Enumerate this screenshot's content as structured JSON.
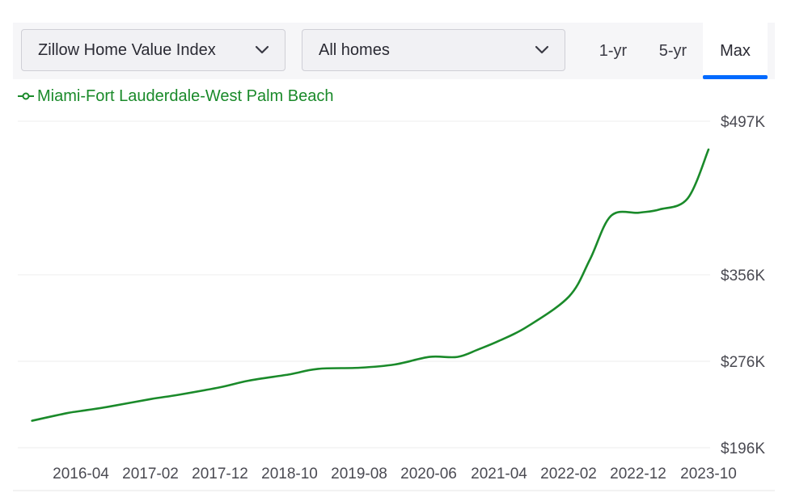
{
  "controls": {
    "metric_dropdown": "Zillow Home Value Index",
    "home_type_dropdown": "All homes",
    "range_tabs": [
      "1-yr",
      "5-yr",
      "Max"
    ],
    "selected_range": "Max"
  },
  "icons": {
    "dropdown": "chevron-down-icon",
    "legend": "line-marker-icon"
  },
  "colors": {
    "series": "#1a8a2a",
    "accent": "#006aff",
    "grid": "#ececec"
  },
  "chart_data": {
    "type": "line",
    "legend_position": "top-left",
    "grid": true,
    "y_axis_position": "right",
    "yticks": [
      {
        "value": 497,
        "label": "$497K"
      },
      {
        "value": 356,
        "label": "$356K"
      },
      {
        "value": 276,
        "label": "$276K"
      },
      {
        "value": 196,
        "label": "$196K"
      }
    ],
    "xticks": [
      "2016-04",
      "2017-02",
      "2017-12",
      "2018-10",
      "2019-08",
      "2020-06",
      "2021-04",
      "2022-02",
      "2022-12",
      "2023-10"
    ],
    "series": [
      {
        "name": "Miami-Fort Lauderdale-West Palm Beach",
        "unit": "thousand USD",
        "points": [
          [
            "2015-09",
            221
          ],
          [
            "2016-02",
            228
          ],
          [
            "2016-04",
            230
          ],
          [
            "2016-08",
            234
          ],
          [
            "2017-02",
            241
          ],
          [
            "2017-06",
            245
          ],
          [
            "2017-12",
            252
          ],
          [
            "2018-04",
            258
          ],
          [
            "2018-10",
            264
          ],
          [
            "2019-02",
            269
          ],
          [
            "2019-08",
            270
          ],
          [
            "2020-01",
            273
          ],
          [
            "2020-06",
            280
          ],
          [
            "2020-10",
            280
          ],
          [
            "2021-01",
            287
          ],
          [
            "2021-04",
            295
          ],
          [
            "2021-08",
            308
          ],
          [
            "2022-02",
            336
          ],
          [
            "2022-05",
            370
          ],
          [
            "2022-08",
            410
          ],
          [
            "2022-12",
            413
          ],
          [
            "2023-03",
            416
          ],
          [
            "2023-07",
            426
          ],
          [
            "2023-10",
            471
          ]
        ]
      }
    ]
  }
}
